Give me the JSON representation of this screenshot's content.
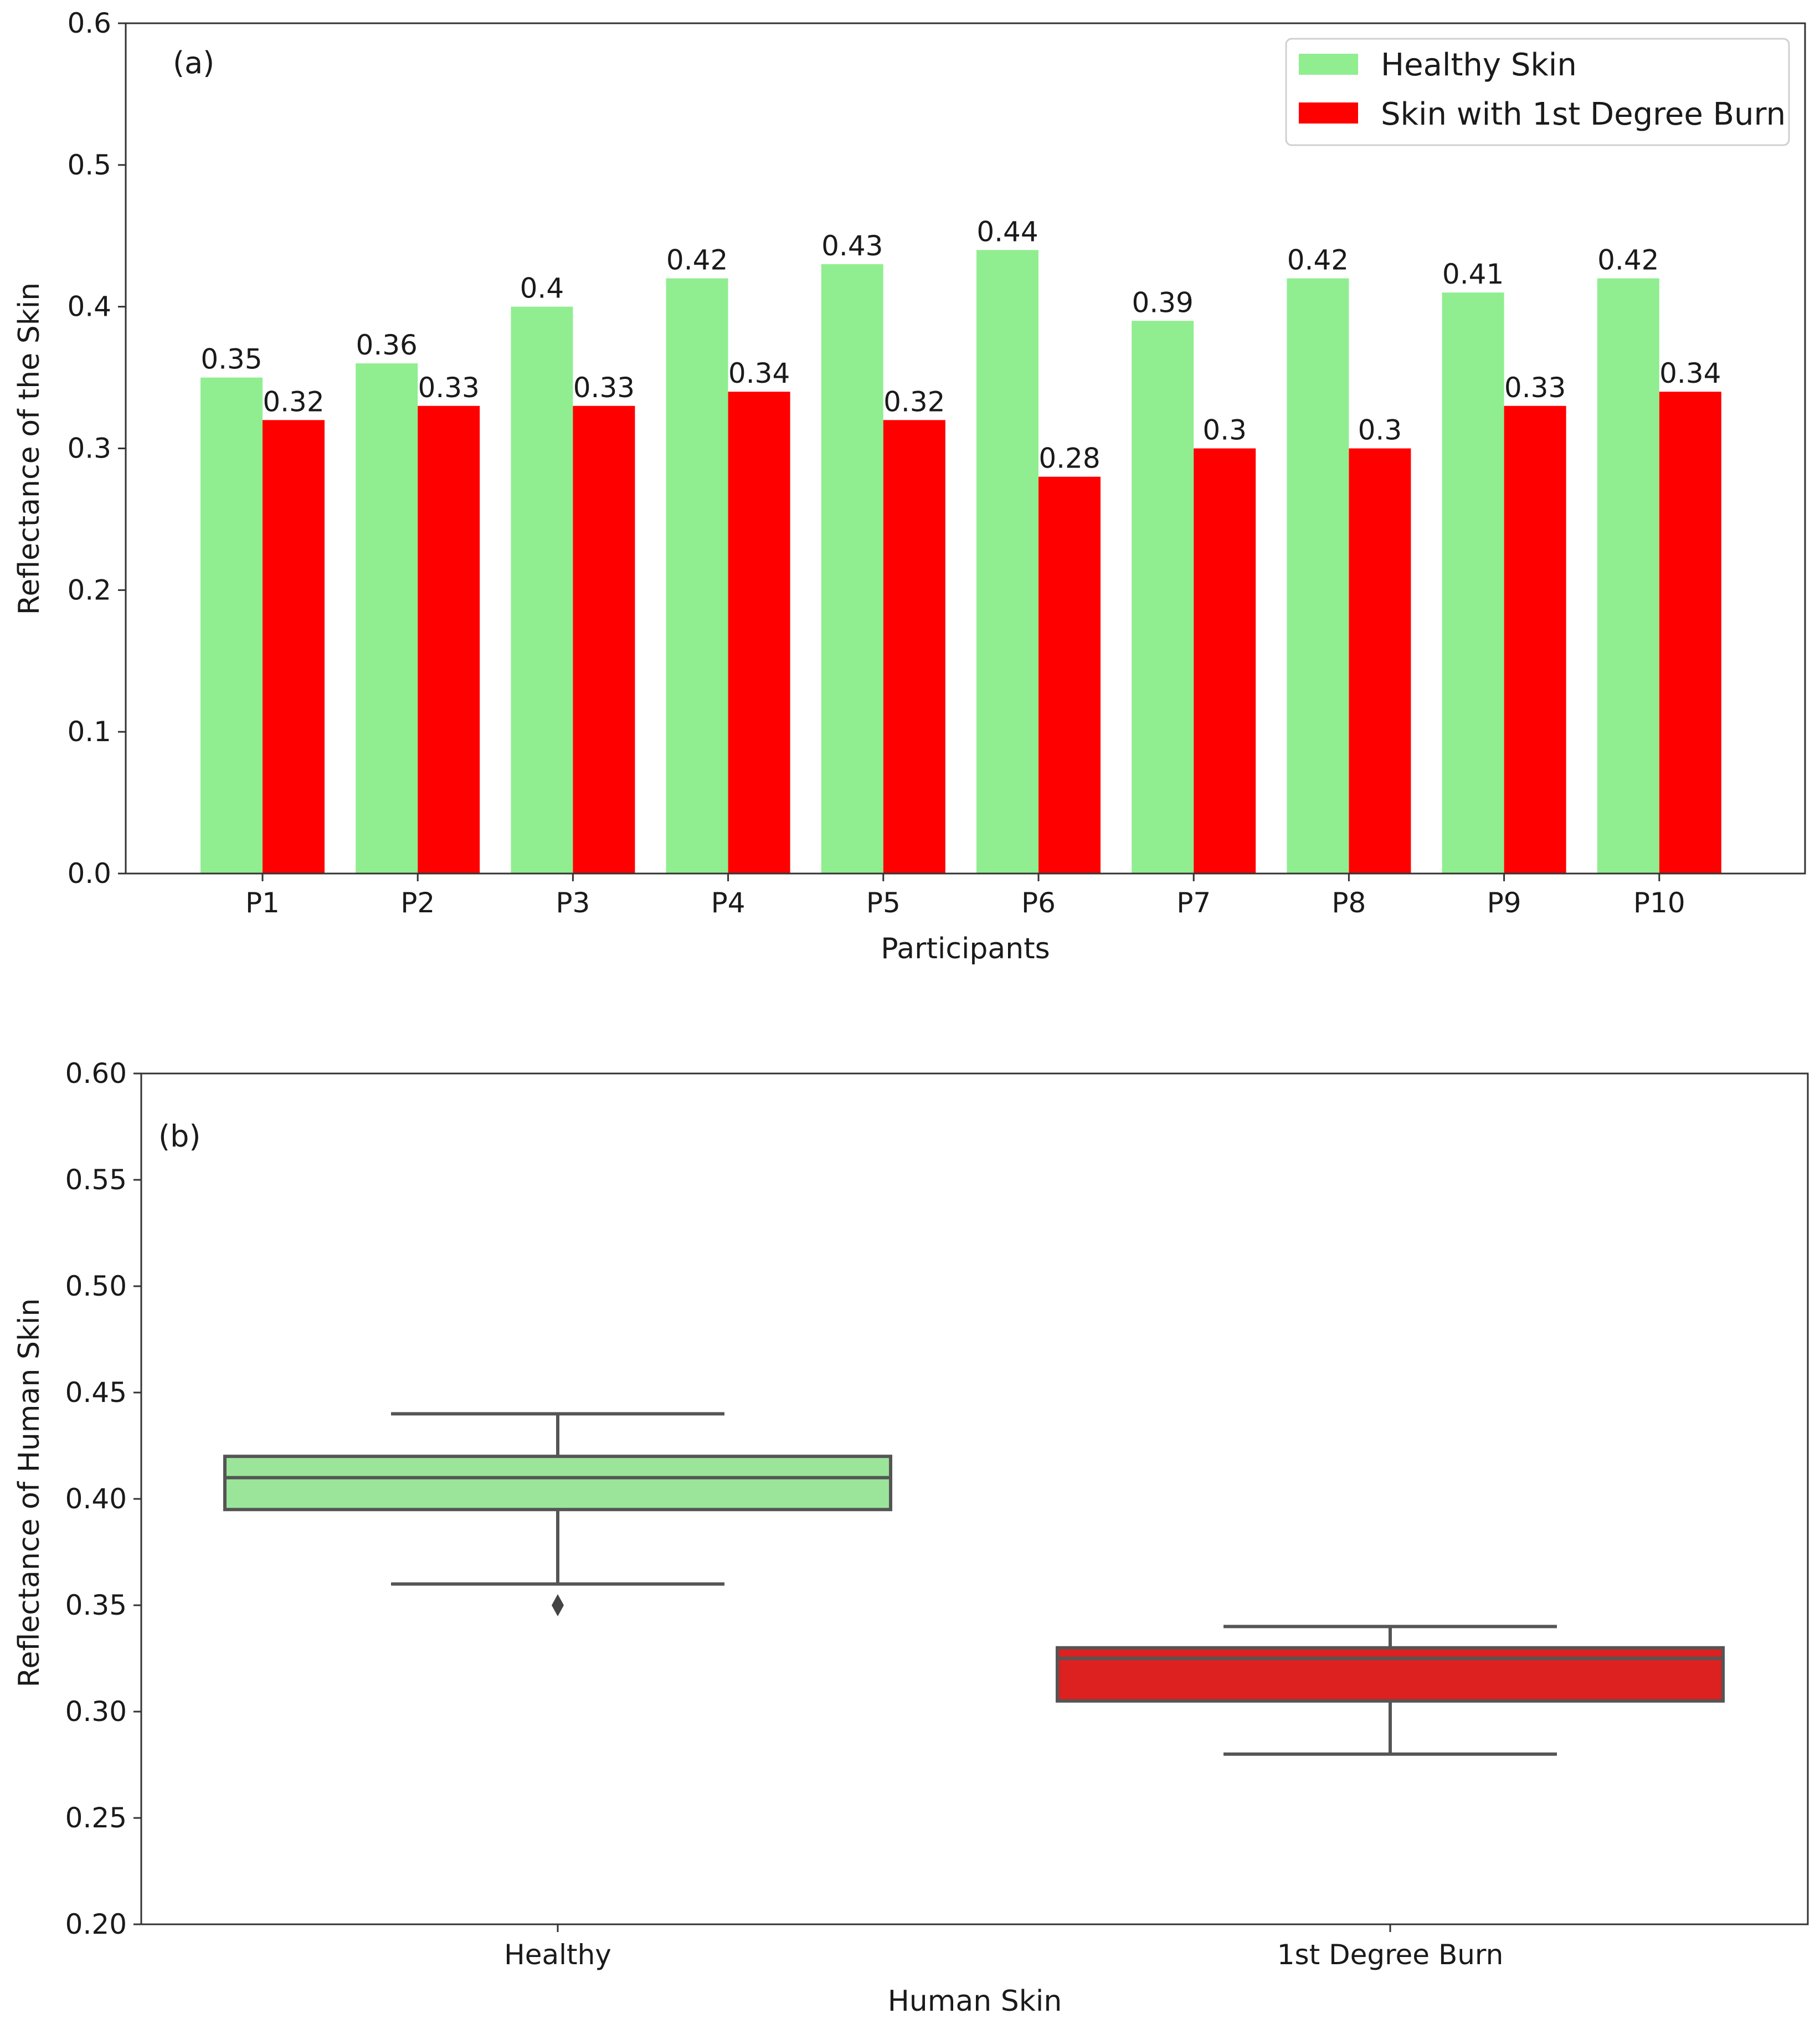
{
  "chart_data": [
    {
      "type": "bar",
      "panel_label": "(a)",
      "xlabel": "Participants",
      "ylabel": "Reflectance of the Skin",
      "categories": [
        "P1",
        "P2",
        "P3",
        "P4",
        "P5",
        "P6",
        "P7",
        "P8",
        "P9",
        "P10"
      ],
      "ylim": [
        0,
        0.6
      ],
      "yticks": [
        "0.0",
        "0.1",
        "0.2",
        "0.3",
        "0.4",
        "0.5",
        "0.6"
      ],
      "grid": false,
      "legend_position": "top-right",
      "series": [
        {
          "name": "Healthy Skin",
          "color": "#90ee90",
          "values": [
            0.35,
            0.36,
            0.4,
            0.42,
            0.43,
            0.44,
            0.39,
            0.42,
            0.41,
            0.42
          ],
          "labels": [
            "0.35",
            "0.36",
            "0.4",
            "0.42",
            "0.43",
            "0.44",
            "0.39",
            "0.42",
            "0.41",
            "0.42"
          ]
        },
        {
          "name": "Skin with 1st Degree Burn",
          "color": "#ff0000",
          "values": [
            0.32,
            0.33,
            0.33,
            0.34,
            0.32,
            0.28,
            0.3,
            0.3,
            0.33,
            0.34
          ],
          "labels": [
            "0.32",
            "0.33",
            "0.33",
            "0.34",
            "0.32",
            "0.28",
            "0.3",
            "0.3",
            "0.33",
            "0.34"
          ]
        }
      ]
    },
    {
      "type": "box",
      "panel_label": "(b)",
      "xlabel": "Human Skin",
      "ylabel": "Reflectance of Human Skin",
      "ylim": [
        0.2,
        0.6
      ],
      "yticks": [
        "0.20",
        "0.25",
        "0.30",
        "0.35",
        "0.40",
        "0.45",
        "0.50",
        "0.55",
        "0.60"
      ],
      "grid": false,
      "boxes": [
        {
          "category": "Healthy",
          "color": "#9be59b",
          "whisker_low": 0.36,
          "q1": 0.395,
          "median": 0.41,
          "q3": 0.42,
          "whisker_high": 0.44,
          "outliers": [
            0.35
          ]
        },
        {
          "category": "1st Degree Burn",
          "color": "#dd2020",
          "whisker_low": 0.28,
          "q1": 0.305,
          "median": 0.325,
          "q3": 0.33,
          "whisker_high": 0.34,
          "outliers": []
        }
      ]
    }
  ]
}
